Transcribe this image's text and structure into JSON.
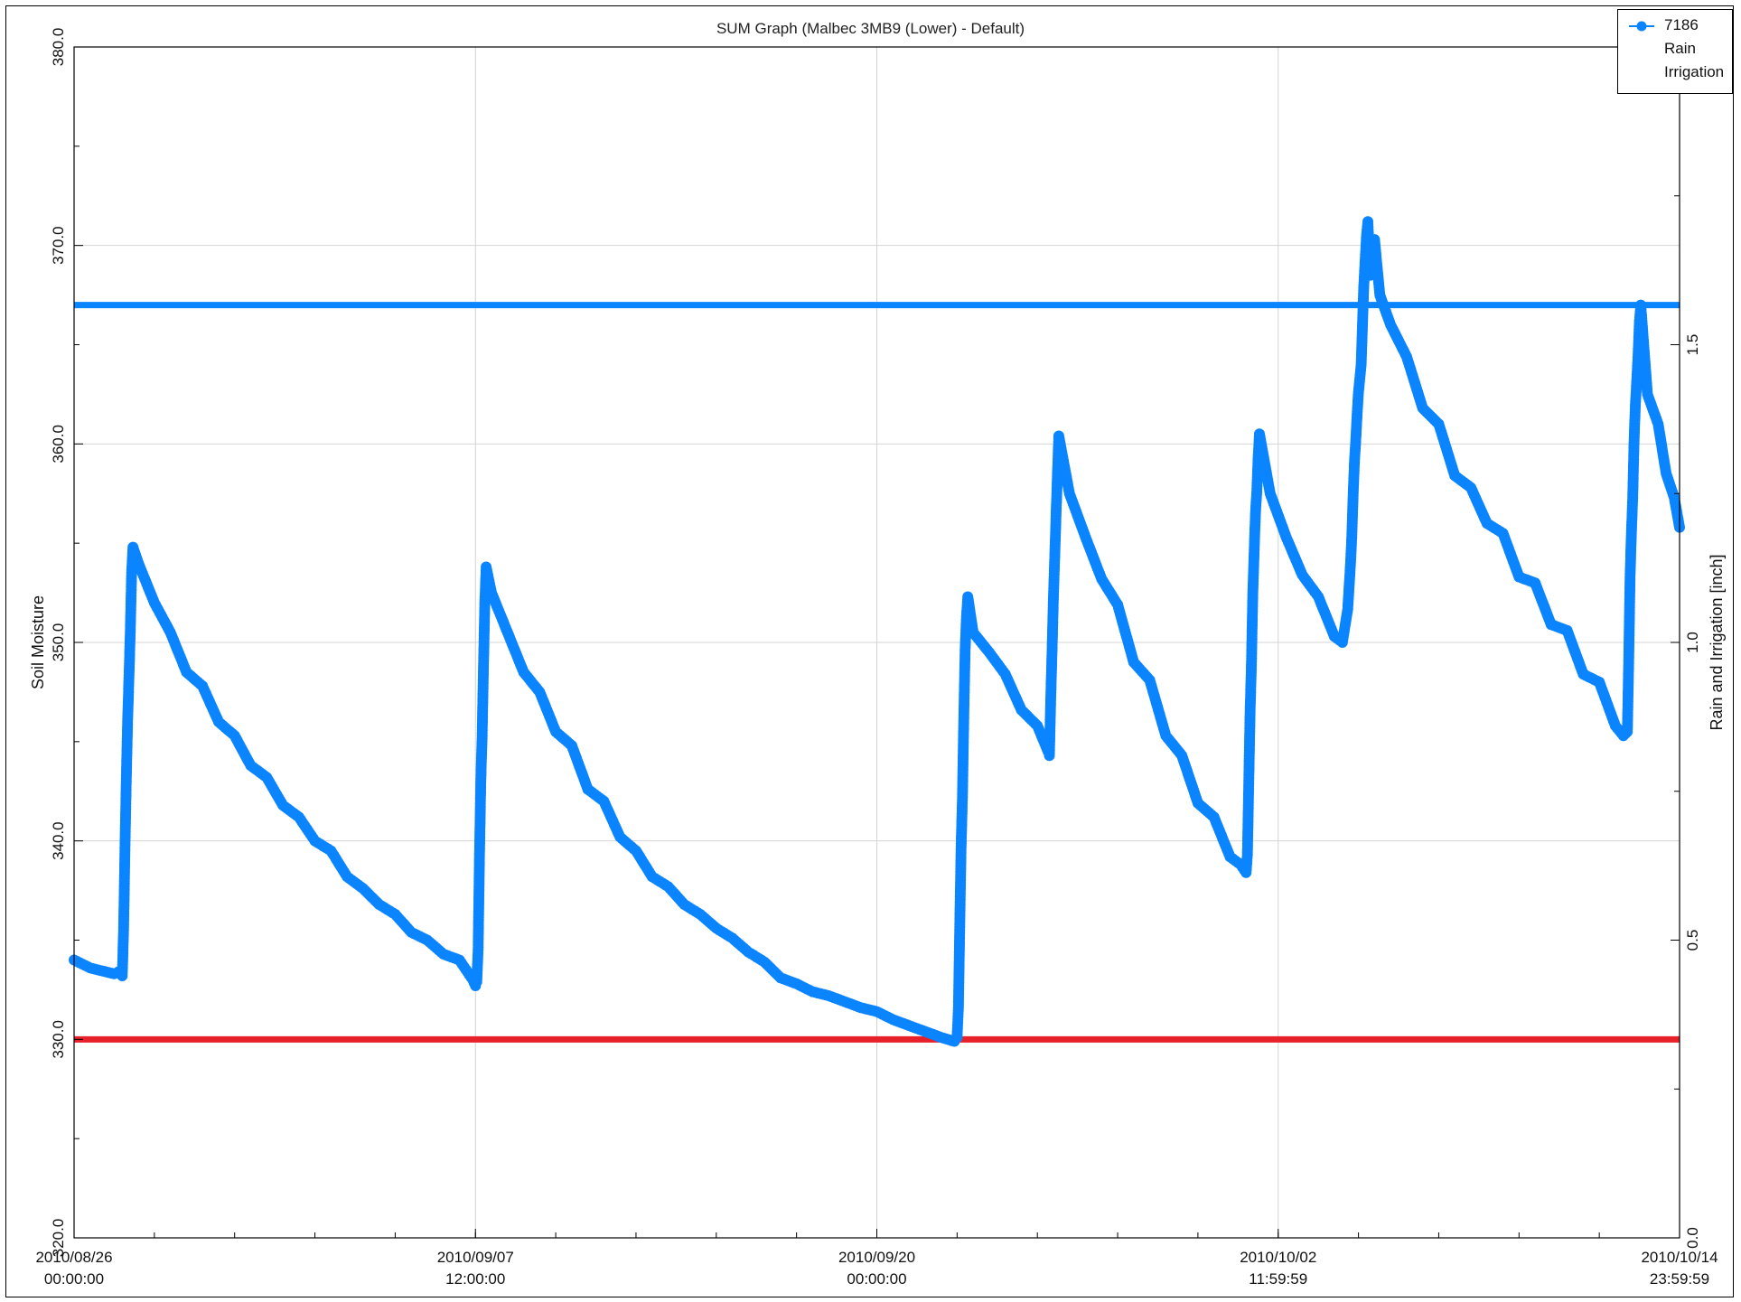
{
  "chart_data": {
    "type": "line",
    "title": "SUM Graph (Malbec 3MB9  (Lower) - Default)",
    "ylabel": "Soil Moisture",
    "ylabel_right": "Rain and Irrigation [inch]",
    "ylim": [
      320.0,
      380.0
    ],
    "ylim_right": [
      0.0,
      2.0
    ],
    "yticks": [
      "320.0",
      "330.0",
      "340.0",
      "350.0",
      "360.0",
      "370.0",
      "380.0"
    ],
    "yticks_right": [
      "0.0",
      "0.5",
      "1.0",
      "1.5"
    ],
    "xlim": [
      "2010-08-26 00:00:00",
      "2010-10-14 23:59:59"
    ],
    "xticks": [
      {
        "date": "2010/08/26",
        "time": "00:00:00"
      },
      {
        "date": "2010/09/07",
        "time": "12:00:00"
      },
      {
        "date": "2010/09/20",
        "time": "00:00:00"
      },
      {
        "date": "2010/10/02",
        "time": "11:59:59"
      },
      {
        "date": "2010/10/14",
        "time": "23:59:59"
      }
    ],
    "grid": true,
    "legend_position": "top-right",
    "reference_lines": [
      {
        "y": 367.0,
        "color": "#0a84ff"
      },
      {
        "y": 330.0,
        "color": "#e8202a"
      }
    ],
    "series": [
      {
        "name": "7186",
        "color": "#0a84ff",
        "points": [
          [
            "2010-08-26 00:00",
            334.0
          ],
          [
            "2010-08-26 06:00",
            333.8
          ],
          [
            "2010-08-26 12:00",
            333.6
          ],
          [
            "2010-08-26 18:00",
            333.5
          ],
          [
            "2010-08-27 00:00",
            333.4
          ],
          [
            "2010-08-27 06:00",
            333.3
          ],
          [
            "2010-08-27 09:00",
            333.4
          ],
          [
            "2010-08-27 12:00",
            333.2
          ],
          [
            "2010-08-27 13:00",
            335.5
          ],
          [
            "2010-08-27 14:00",
            339.5
          ],
          [
            "2010-08-27 15:00",
            343.0
          ],
          [
            "2010-08-27 16:00",
            346.0
          ],
          [
            "2010-08-27 17:00",
            348.2
          ],
          [
            "2010-08-27 18:00",
            350.5
          ],
          [
            "2010-08-27 19:00",
            353.5
          ],
          [
            "2010-08-27 20:00",
            354.8
          ],
          [
            "2010-08-28 00:00",
            354.0
          ],
          [
            "2010-08-28 12:00",
            352.0
          ],
          [
            "2010-08-29 00:00",
            350.5
          ],
          [
            "2010-08-29 12:00",
            348.5
          ],
          [
            "2010-08-30 00:00",
            347.8
          ],
          [
            "2010-08-30 12:00",
            346.0
          ],
          [
            "2010-08-31 00:00",
            345.3
          ],
          [
            "2010-08-31 12:00",
            343.8
          ],
          [
            "2010-09-01 00:00",
            343.2
          ],
          [
            "2010-09-01 12:00",
            341.8
          ],
          [
            "2010-09-02 00:00",
            341.2
          ],
          [
            "2010-09-02 12:00",
            340.0
          ],
          [
            "2010-09-03 00:00",
            339.5
          ],
          [
            "2010-09-03 12:00",
            338.2
          ],
          [
            "2010-09-04 00:00",
            337.6
          ],
          [
            "2010-09-04 12:00",
            336.8
          ],
          [
            "2010-09-05 00:00",
            336.3
          ],
          [
            "2010-09-05 12:00",
            335.4
          ],
          [
            "2010-09-06 00:00",
            335.0
          ],
          [
            "2010-09-06 12:00",
            334.3
          ],
          [
            "2010-09-07 00:00",
            334.0
          ],
          [
            "2010-09-07 06:00",
            333.4
          ],
          [
            "2010-09-07 10:00",
            333.0
          ],
          [
            "2010-09-07 12:00",
            332.7
          ],
          [
            "2010-09-07 13:00",
            332.9
          ],
          [
            "2010-09-07 14:00",
            334.5
          ],
          [
            "2010-09-07 15:00",
            339.2
          ],
          [
            "2010-09-07 16:00",
            343.0
          ],
          [
            "2010-09-07 17:00",
            345.3
          ],
          [
            "2010-09-07 18:00",
            348.8
          ],
          [
            "2010-09-07 19:00",
            352.0
          ],
          [
            "2010-09-07 20:00",
            353.8
          ],
          [
            "2010-09-08 00:00",
            352.5
          ],
          [
            "2010-09-08 12:00",
            350.5
          ],
          [
            "2010-09-09 00:00",
            348.5
          ],
          [
            "2010-09-09 12:00",
            347.5
          ],
          [
            "2010-09-10 00:00",
            345.5
          ],
          [
            "2010-09-10 12:00",
            344.8
          ],
          [
            "2010-09-11 00:00",
            342.6
          ],
          [
            "2010-09-11 12:00",
            342.0
          ],
          [
            "2010-09-12 00:00",
            340.2
          ],
          [
            "2010-09-12 12:00",
            339.5
          ],
          [
            "2010-09-13 00:00",
            338.2
          ],
          [
            "2010-09-13 12:00",
            337.7
          ],
          [
            "2010-09-14 00:00",
            336.8
          ],
          [
            "2010-09-14 12:00",
            336.3
          ],
          [
            "2010-09-15 00:00",
            335.6
          ],
          [
            "2010-09-15 12:00",
            335.1
          ],
          [
            "2010-09-16 00:00",
            334.4
          ],
          [
            "2010-09-16 12:00",
            333.9
          ],
          [
            "2010-09-17 00:00",
            333.1
          ],
          [
            "2010-09-17 12:00",
            332.8
          ],
          [
            "2010-09-18 00:00",
            332.4
          ],
          [
            "2010-09-18 12:00",
            332.2
          ],
          [
            "2010-09-19 00:00",
            331.9
          ],
          [
            "2010-09-19 12:00",
            331.6
          ],
          [
            "2010-09-20 00:00",
            331.4
          ],
          [
            "2010-09-20 12:00",
            331.0
          ],
          [
            "2010-09-21 00:00",
            330.7
          ],
          [
            "2010-09-21 12:00",
            330.4
          ],
          [
            "2010-09-22 00:00",
            330.1
          ],
          [
            "2010-09-22 10:00",
            329.9
          ],
          [
            "2010-09-22 12:00",
            330.1
          ],
          [
            "2010-09-22 13:00",
            331.6
          ],
          [
            "2010-09-22 14:00",
            335.8
          ],
          [
            "2010-09-22 15:00",
            339.7
          ],
          [
            "2010-09-22 16:00",
            342.2
          ],
          [
            "2010-09-22 17:00",
            346.2
          ],
          [
            "2010-09-22 18:00",
            349.6
          ],
          [
            "2010-09-22 19:00",
            351.3
          ],
          [
            "2010-09-22 20:00",
            352.3
          ],
          [
            "2010-09-23 00:00",
            350.5
          ],
          [
            "2010-09-23 12:00",
            349.5
          ],
          [
            "2010-09-24 00:00",
            348.4
          ],
          [
            "2010-09-24 12:00",
            346.6
          ],
          [
            "2010-09-25 00:00",
            345.8
          ],
          [
            "2010-09-25 08:00",
            344.5
          ],
          [
            "2010-09-25 09:00",
            344.3
          ],
          [
            "2010-09-25 10:00",
            347.2
          ],
          [
            "2010-09-25 11:00",
            349.6
          ],
          [
            "2010-09-25 12:00",
            352.3
          ],
          [
            "2010-09-25 13:00",
            354.3
          ],
          [
            "2010-09-25 14:00",
            356.5
          ],
          [
            "2010-09-25 15:00",
            358.5
          ],
          [
            "2010-09-25 16:00",
            360.4
          ],
          [
            "2010-09-26 00:00",
            357.5
          ],
          [
            "2010-09-26 12:00",
            355.3
          ],
          [
            "2010-09-27 00:00",
            353.2
          ],
          [
            "2010-09-27 12:00",
            351.9
          ],
          [
            "2010-09-28 00:00",
            349.0
          ],
          [
            "2010-09-28 12:00",
            348.1
          ],
          [
            "2010-09-29 00:00",
            345.3
          ],
          [
            "2010-09-29 12:00",
            344.3
          ],
          [
            "2010-09-30 00:00",
            341.9
          ],
          [
            "2010-09-30 12:00",
            341.2
          ],
          [
            "2010-10-01 00:00",
            339.2
          ],
          [
            "2010-10-01 08:00",
            338.8
          ],
          [
            "2010-10-01 12:00",
            338.4
          ],
          [
            "2010-10-01 13:00",
            339.3
          ],
          [
            "2010-10-01 14:00",
            342.9
          ],
          [
            "2010-10-01 15:00",
            346.5
          ],
          [
            "2010-10-01 16:00",
            348.9
          ],
          [
            "2010-10-01 17:00",
            352.4
          ],
          [
            "2010-10-01 18:00",
            354.5
          ],
          [
            "2010-10-01 19:00",
            356.5
          ],
          [
            "2010-10-01 20:00",
            357.6
          ],
          [
            "2010-10-01 21:00",
            359.3
          ],
          [
            "2010-10-01 22:00",
            360.5
          ],
          [
            "2010-10-02 06:00",
            357.5
          ],
          [
            "2010-10-02 18:00",
            355.3
          ],
          [
            "2010-10-03 06:00",
            353.4
          ],
          [
            "2010-10-03 18:00",
            352.3
          ],
          [
            "2010-10-04 06:00",
            350.3
          ],
          [
            "2010-10-04 12:00",
            350.0
          ],
          [
            "2010-10-04 16:00",
            351.7
          ],
          [
            "2010-10-04 18:00",
            353.9
          ],
          [
            "2010-10-04 19:00",
            355.3
          ],
          [
            "2010-10-04 20:00",
            357.4
          ],
          [
            "2010-10-04 21:00",
            359.1
          ],
          [
            "2010-10-04 22:00",
            360.2
          ],
          [
            "2010-10-04 23:00",
            361.5
          ],
          [
            "2010-10-05 00:00",
            362.6
          ],
          [
            "2010-10-05 02:00",
            364.0
          ],
          [
            "2010-10-05 04:00",
            368.0
          ],
          [
            "2010-10-05 06:00",
            370.5
          ],
          [
            "2010-10-05 07:00",
            371.2
          ],
          [
            "2010-10-05 09:00",
            368.5
          ],
          [
            "2010-10-05 12:00",
            370.3
          ],
          [
            "2010-10-05 16:00",
            367.5
          ],
          [
            "2010-10-06 00:00",
            366.0
          ],
          [
            "2010-10-06 12:00",
            364.4
          ],
          [
            "2010-10-07 00:00",
            361.8
          ],
          [
            "2010-10-07 12:00",
            361.0
          ],
          [
            "2010-10-08 00:00",
            358.4
          ],
          [
            "2010-10-08 12:00",
            357.8
          ],
          [
            "2010-10-09 00:00",
            356.0
          ],
          [
            "2010-10-09 12:00",
            355.5
          ],
          [
            "2010-10-10 00:00",
            353.3
          ],
          [
            "2010-10-10 12:00",
            353.0
          ],
          [
            "2010-10-11 00:00",
            350.9
          ],
          [
            "2010-10-11 12:00",
            350.6
          ],
          [
            "2010-10-12 00:00",
            348.4
          ],
          [
            "2010-10-12 12:00",
            348.0
          ],
          [
            "2010-10-13 00:00",
            345.8
          ],
          [
            "2010-10-13 06:00",
            345.3
          ],
          [
            "2010-10-13 09:00",
            345.5
          ],
          [
            "2010-10-13 10:00",
            349.1
          ],
          [
            "2010-10-13 11:00",
            353.3
          ],
          [
            "2010-10-13 12:00",
            355.5
          ],
          [
            "2010-10-13 13:00",
            357.3
          ],
          [
            "2010-10-13 14:00",
            360.2
          ],
          [
            "2010-10-13 15:00",
            362.0
          ],
          [
            "2010-10-13 16:00",
            363.2
          ],
          [
            "2010-10-13 17:00",
            364.5
          ],
          [
            "2010-10-13 18:00",
            366.2
          ],
          [
            "2010-10-13 19:00",
            367.0
          ],
          [
            "2010-10-14 00:00",
            362.5
          ],
          [
            "2010-10-14 08:00",
            361.0
          ],
          [
            "2010-10-14 14:00",
            358.5
          ],
          [
            "2010-10-14 20:00",
            357.3
          ],
          [
            "2010-10-14 23:59",
            355.8
          ]
        ]
      }
    ]
  },
  "legend": {
    "series_label": "7186",
    "extra_lines": [
      "Rain",
      "Irrigation"
    ]
  }
}
